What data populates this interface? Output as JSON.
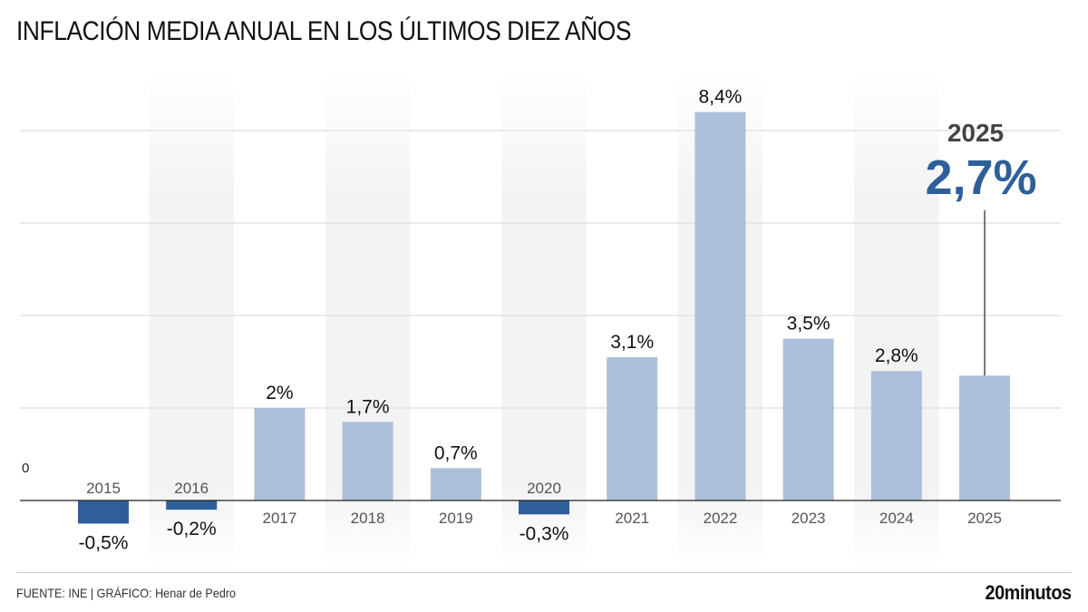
{
  "title": "INFLACIÓN MEDIA ANUAL EN LOS ÚLTIMOS DIEZ AÑOS",
  "footer": {
    "source": "FUENTE: INE  |  GRÁFICO: Henar de Pedro",
    "logo": "20minutos"
  },
  "highlight": {
    "year": "2025",
    "value": "2,7%"
  },
  "colors": {
    "positive": "#adc0d9",
    "negative": "#2e5f9a",
    "highlight": "#2e5f9a"
  },
  "chart_data": {
    "type": "bar",
    "title": "INFLACIÓN MEDIA ANUAL EN LOS ÚLTIMOS DIEZ AÑOS",
    "xlabel": "",
    "ylabel": "",
    "categories": [
      "2015",
      "2016",
      "2017",
      "2018",
      "2019",
      "2020",
      "2021",
      "2022",
      "2023",
      "2024",
      "2025"
    ],
    "values": [
      -0.5,
      -0.2,
      2.0,
      1.7,
      0.7,
      -0.3,
      3.1,
      8.4,
      3.5,
      2.8,
      2.7
    ],
    "labels": [
      "-0,5%",
      "-0,2%",
      "2%",
      "1,7%",
      "0,7%",
      "-0,3%",
      "3,1%",
      "8,4%",
      "3,5%",
      "2,8%",
      ""
    ],
    "y_tick_labels": [
      "0"
    ],
    "ylim": [
      -1.2,
      9
    ],
    "gridlines": [
      2,
      4,
      6,
      8
    ],
    "grid": true,
    "legend": "none"
  }
}
